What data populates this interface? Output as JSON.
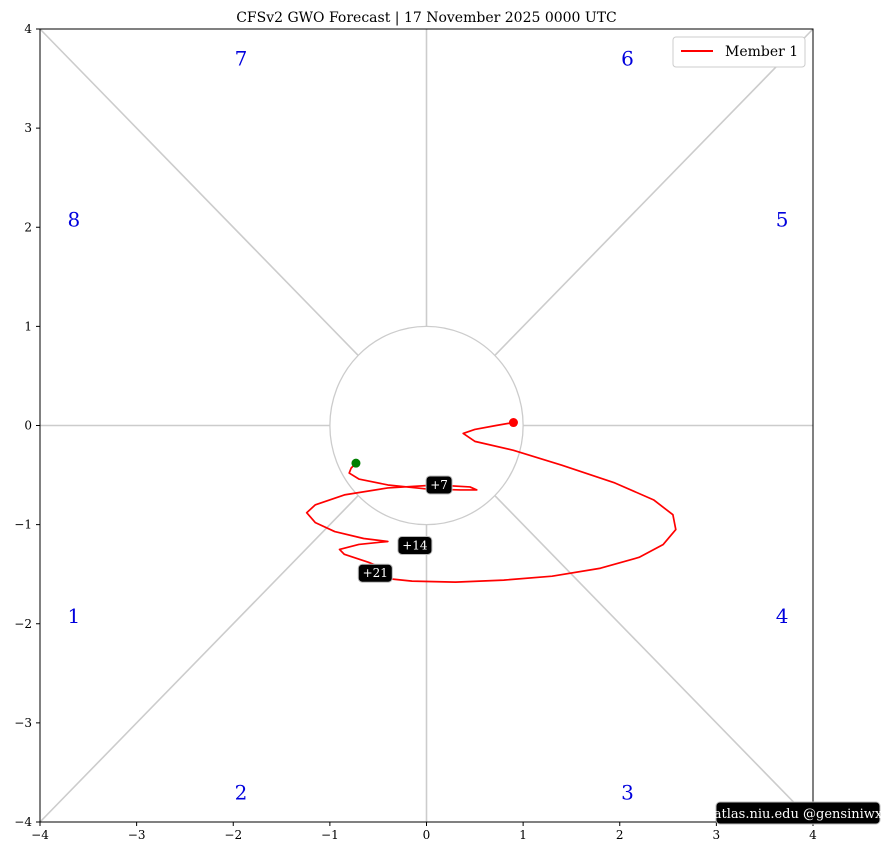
{
  "chart_data": {
    "type": "line",
    "title": "CFSv2 GWO Forecast   |   17  November  2025 0000 UTC",
    "xlim": [
      -4,
      4
    ],
    "ylim": [
      -4,
      4
    ],
    "xticks": [
      -4,
      -3,
      -2,
      -1,
      0,
      1,
      2,
      3,
      4
    ],
    "yticks": [
      -4,
      -3,
      -2,
      -1,
      0,
      1,
      2,
      3,
      4
    ],
    "xtick_labels": [
      "−4",
      "−3",
      "−2",
      "−1",
      "0",
      "1",
      "2",
      "3",
      "4"
    ],
    "ytick_labels": [
      "−4",
      "−3",
      "−2",
      "−1",
      "0",
      "1",
      "2",
      "3",
      "4"
    ],
    "legend": {
      "position": "top-right",
      "entries": [
        {
          "label": "Member 1",
          "color": "#ff0000"
        }
      ]
    },
    "unit_circle_radius": 1,
    "phase_labels": [
      {
        "label": "1",
        "x": -3.65,
        "y": -1.92
      },
      {
        "label": "2",
        "x": -1.92,
        "y": -3.7
      },
      {
        "label": "3",
        "x": 2.08,
        "y": -3.7
      },
      {
        "label": "4",
        "x": 3.68,
        "y": -1.92
      },
      {
        "label": "5",
        "x": 3.68,
        "y": 2.08
      },
      {
        "label": "6",
        "x": 2.08,
        "y": 3.7
      },
      {
        "label": "7",
        "x": -1.92,
        "y": 3.7
      },
      {
        "label": "8",
        "x": -3.65,
        "y": 2.08
      }
    ],
    "series": [
      {
        "name": "Member 1",
        "color": "#ff0000",
        "x": [
          0.9,
          0.72,
          0.5,
          0.38,
          0.5,
          0.9,
          1.4,
          1.95,
          2.35,
          2.55,
          2.58,
          2.45,
          2.2,
          1.8,
          1.3,
          0.8,
          0.3,
          -0.15,
          -0.45,
          -0.5,
          -0.6,
          -0.85,
          -0.9,
          -0.7,
          -0.4,
          -0.65,
          -0.95,
          -1.15,
          -1.24,
          -1.15,
          -0.85,
          -0.4,
          0.1,
          0.45,
          0.52,
          0.35,
          0.0,
          -0.4,
          -0.7,
          -0.8,
          -0.78,
          -0.73
        ],
        "y": [
          0.03,
          0.0,
          -0.04,
          -0.08,
          -0.16,
          -0.25,
          -0.4,
          -0.58,
          -0.75,
          -0.9,
          -1.05,
          -1.2,
          -1.33,
          -1.44,
          -1.52,
          -1.56,
          -1.58,
          -1.57,
          -1.54,
          -1.42,
          -1.38,
          -1.3,
          -1.25,
          -1.2,
          -1.17,
          -1.14,
          -1.07,
          -0.98,
          -0.88,
          -0.8,
          -0.7,
          -0.63,
          -0.6,
          -0.62,
          -0.65,
          -0.65,
          -0.64,
          -0.6,
          -0.54,
          -0.48,
          -0.43,
          -0.38
        ]
      }
    ],
    "start_point": {
      "x": 0.9,
      "y": 0.03,
      "color": "#ff0000"
    },
    "end_point": {
      "x": -0.73,
      "y": -0.38,
      "color": "#008000"
    },
    "day_markers": [
      {
        "label": "+7",
        "x": 0.13,
        "y": -0.6
      },
      {
        "label": "+14",
        "x": -0.12,
        "y": -1.21
      },
      {
        "label": "+21",
        "x": -0.53,
        "y": -1.49
      }
    ]
  },
  "credit": "atlas.niu.edu  @gensiniwx"
}
